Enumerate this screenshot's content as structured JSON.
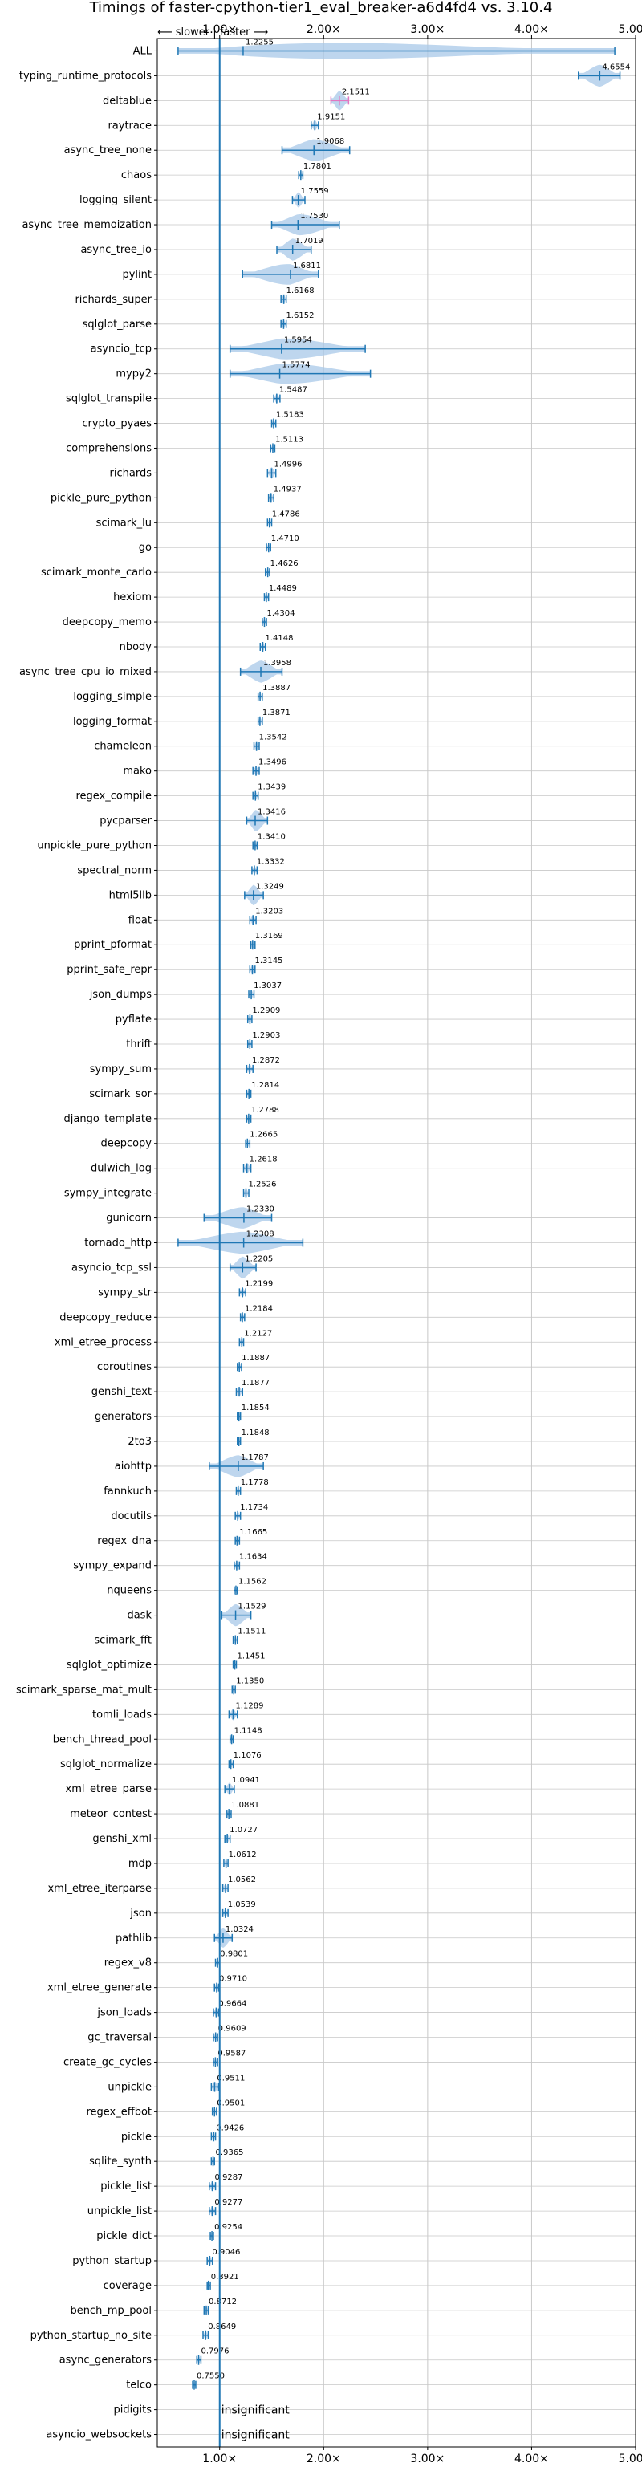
{
  "chart_data": {
    "type": "violin",
    "title": "Timings of faster-cpython-tier1_eval_breaker-a6d4fd4 vs. 3.10.4",
    "direction_label": "⟵ slower | faster ⟶",
    "xlim": [
      0.4,
      5.0
    ],
    "xticks": [
      "1.00×",
      "2.00×",
      "3.00×",
      "4.00×",
      "5.00×"
    ],
    "reference_line": 1.0,
    "colors": {
      "violin": "#a8c8e8",
      "line": "#1f77b4",
      "grid": "#c8c8c8",
      "highlight": "#e377c2"
    },
    "rows": [
      {
        "name": "ALL",
        "value": 1.2255,
        "label": "1.2255",
        "min": 0.6,
        "max": 4.8,
        "spread": 0.18
      },
      {
        "name": "typing_runtime_protocols",
        "value": 4.6554,
        "label": "4.6554",
        "min": 4.45,
        "max": 4.85,
        "spread": 0.16
      },
      {
        "name": "deltablue",
        "value": 2.1511,
        "label": "2.1511",
        "min": 2.07,
        "max": 2.24,
        "spread": 0.08,
        "hl": true
      },
      {
        "name": "raytrace",
        "value": 1.9151,
        "label": "1.9151",
        "min": 1.88,
        "max": 1.95,
        "spread": 0.05
      },
      {
        "name": "async_tree_none",
        "value": 1.9068,
        "label": "1.9068",
        "min": 1.6,
        "max": 2.25,
        "spread": 0.2
      },
      {
        "name": "chaos",
        "value": 1.7801,
        "label": "1.7801",
        "min": 1.76,
        "max": 1.8,
        "spread": 0.03
      },
      {
        "name": "logging_silent",
        "value": 1.7559,
        "label": "1.7559",
        "min": 1.7,
        "max": 1.82,
        "spread": 0.05
      },
      {
        "name": "async_tree_memoization",
        "value": 1.753,
        "label": "1.7530",
        "min": 1.5,
        "max": 2.15,
        "spread": 0.22
      },
      {
        "name": "async_tree_io",
        "value": 1.7019,
        "label": "1.7019",
        "min": 1.55,
        "max": 1.88,
        "spread": 0.14
      },
      {
        "name": "pylint",
        "value": 1.6811,
        "label": "1.6811",
        "min": 1.22,
        "max": 1.95,
        "spread": 0.18
      },
      {
        "name": "richards_super",
        "value": 1.6168,
        "label": "1.6168",
        "min": 1.59,
        "max": 1.64,
        "spread": 0.04
      },
      {
        "name": "sqlglot_parse",
        "value": 1.6152,
        "label": "1.6152",
        "min": 1.59,
        "max": 1.64,
        "spread": 0.04
      },
      {
        "name": "asyncio_tcp",
        "value": 1.5954,
        "label": "1.5954",
        "min": 1.1,
        "max": 2.4,
        "spread": 0.2
      },
      {
        "name": "mypy2",
        "value": 1.5774,
        "label": "1.5774",
        "min": 1.1,
        "max": 2.45,
        "spread": 0.22
      },
      {
        "name": "sqlglot_transpile",
        "value": 1.5487,
        "label": "1.5487",
        "min": 1.52,
        "max": 1.58,
        "spread": 0.05
      },
      {
        "name": "crypto_pyaes",
        "value": 1.5183,
        "label": "1.5183",
        "min": 1.5,
        "max": 1.54,
        "spread": 0.03
      },
      {
        "name": "comprehensions",
        "value": 1.5113,
        "label": "1.5113",
        "min": 1.49,
        "max": 1.53,
        "spread": 0.03
      },
      {
        "name": "richards",
        "value": 1.4996,
        "label": "1.4996",
        "min": 1.46,
        "max": 1.54,
        "spread": 0.05
      },
      {
        "name": "pickle_pure_python",
        "value": 1.4937,
        "label": "1.4937",
        "min": 1.47,
        "max": 1.52,
        "spread": 0.04
      },
      {
        "name": "scimark_lu",
        "value": 1.4786,
        "label": "1.4786",
        "min": 1.46,
        "max": 1.5,
        "spread": 0.03
      },
      {
        "name": "go",
        "value": 1.471,
        "label": "1.4710",
        "min": 1.45,
        "max": 1.49,
        "spread": 0.03
      },
      {
        "name": "scimark_monte_carlo",
        "value": 1.4626,
        "label": "1.4626",
        "min": 1.44,
        "max": 1.48,
        "spread": 0.03
      },
      {
        "name": "hexiom",
        "value": 1.4489,
        "label": "1.4489",
        "min": 1.43,
        "max": 1.47,
        "spread": 0.03
      },
      {
        "name": "deepcopy_memo",
        "value": 1.4304,
        "label": "1.4304",
        "min": 1.41,
        "max": 1.45,
        "spread": 0.03
      },
      {
        "name": "nbody",
        "value": 1.4148,
        "label": "1.4148",
        "min": 1.39,
        "max": 1.44,
        "spread": 0.03
      },
      {
        "name": "async_tree_cpu_io_mixed",
        "value": 1.3958,
        "label": "1.3958",
        "min": 1.2,
        "max": 1.6,
        "spread": 0.15
      },
      {
        "name": "logging_simple",
        "value": 1.3887,
        "label": "1.3887",
        "min": 1.37,
        "max": 1.41,
        "spread": 0.03
      },
      {
        "name": "logging_format",
        "value": 1.3871,
        "label": "1.3871",
        "min": 1.37,
        "max": 1.41,
        "spread": 0.03
      },
      {
        "name": "chameleon",
        "value": 1.3542,
        "label": "1.3542",
        "min": 1.33,
        "max": 1.38,
        "spread": 0.03
      },
      {
        "name": "mako",
        "value": 1.3496,
        "label": "1.3496",
        "min": 1.32,
        "max": 1.38,
        "spread": 0.03
      },
      {
        "name": "regex_compile",
        "value": 1.3439,
        "label": "1.3439",
        "min": 1.32,
        "max": 1.37,
        "spread": 0.03
      },
      {
        "name": "pycparser",
        "value": 1.3416,
        "label": "1.3416",
        "min": 1.26,
        "max": 1.46,
        "spread": 0.1
      },
      {
        "name": "unpickle_pure_python",
        "value": 1.341,
        "label": "1.3410",
        "min": 1.32,
        "max": 1.36,
        "spread": 0.03
      },
      {
        "name": "spectral_norm",
        "value": 1.3332,
        "label": "1.3332",
        "min": 1.31,
        "max": 1.36,
        "spread": 0.03
      },
      {
        "name": "html5lib",
        "value": 1.3249,
        "label": "1.3249",
        "min": 1.24,
        "max": 1.42,
        "spread": 0.07
      },
      {
        "name": "float",
        "value": 1.3203,
        "label": "1.3203",
        "min": 1.29,
        "max": 1.35,
        "spread": 0.04
      },
      {
        "name": "pprint_pformat",
        "value": 1.3169,
        "label": "1.3169",
        "min": 1.3,
        "max": 1.34,
        "spread": 0.03
      },
      {
        "name": "pprint_safe_repr",
        "value": 1.3145,
        "label": "1.3145",
        "min": 1.29,
        "max": 1.34,
        "spread": 0.03
      },
      {
        "name": "json_dumps",
        "value": 1.3037,
        "label": "1.3037",
        "min": 1.28,
        "max": 1.33,
        "spread": 0.03
      },
      {
        "name": "pyflate",
        "value": 1.2909,
        "label": "1.2909",
        "min": 1.27,
        "max": 1.31,
        "spread": 0.03
      },
      {
        "name": "thrift",
        "value": 1.2903,
        "label": "1.2903",
        "min": 1.27,
        "max": 1.31,
        "spread": 0.03
      },
      {
        "name": "sympy_sum",
        "value": 1.2872,
        "label": "1.2872",
        "min": 1.26,
        "max": 1.32,
        "spread": 0.04
      },
      {
        "name": "scimark_sor",
        "value": 1.2814,
        "label": "1.2814",
        "min": 1.26,
        "max": 1.3,
        "spread": 0.03
      },
      {
        "name": "django_template",
        "value": 1.2788,
        "label": "1.2788",
        "min": 1.26,
        "max": 1.3,
        "spread": 0.03
      },
      {
        "name": "deepcopy",
        "value": 1.2665,
        "label": "1.2665",
        "min": 1.25,
        "max": 1.29,
        "spread": 0.03
      },
      {
        "name": "dulwich_log",
        "value": 1.2618,
        "label": "1.2618",
        "min": 1.23,
        "max": 1.3,
        "spread": 0.04
      },
      {
        "name": "sympy_integrate",
        "value": 1.2526,
        "label": "1.2526",
        "min": 1.23,
        "max": 1.28,
        "spread": 0.03
      },
      {
        "name": "gunicorn",
        "value": 1.233,
        "label": "1.2330",
        "min": 0.85,
        "max": 1.5,
        "spread": 0.15
      },
      {
        "name": "tornado_http",
        "value": 1.2308,
        "label": "1.2308",
        "min": 0.6,
        "max": 1.8,
        "spread": 0.25
      },
      {
        "name": "asyncio_tcp_ssl",
        "value": 1.2205,
        "label": "1.2205",
        "min": 1.1,
        "max": 1.35,
        "spread": 0.1
      },
      {
        "name": "sympy_str",
        "value": 1.2199,
        "label": "1.2199",
        "min": 1.19,
        "max": 1.25,
        "spread": 0.04
      },
      {
        "name": "deepcopy_reduce",
        "value": 1.2184,
        "label": "1.2184",
        "min": 1.2,
        "max": 1.24,
        "spread": 0.03
      },
      {
        "name": "xml_etree_process",
        "value": 1.2127,
        "label": "1.2127",
        "min": 1.19,
        "max": 1.23,
        "spread": 0.03
      },
      {
        "name": "coroutines",
        "value": 1.1887,
        "label": "1.1887",
        "min": 1.17,
        "max": 1.21,
        "spread": 0.03
      },
      {
        "name": "genshi_text",
        "value": 1.1877,
        "label": "1.1877",
        "min": 1.16,
        "max": 1.22,
        "spread": 0.04
      },
      {
        "name": "generators",
        "value": 1.1854,
        "label": "1.1854",
        "min": 1.17,
        "max": 1.2,
        "spread": 0.03
      },
      {
        "name": "2to3",
        "value": 1.1848,
        "label": "1.1848",
        "min": 1.17,
        "max": 1.2,
        "spread": 0.03
      },
      {
        "name": "aiohttp",
        "value": 1.1787,
        "label": "1.1787",
        "min": 0.9,
        "max": 1.42,
        "spread": 0.15
      },
      {
        "name": "fannkuch",
        "value": 1.1778,
        "label": "1.1778",
        "min": 1.16,
        "max": 1.2,
        "spread": 0.03
      },
      {
        "name": "docutils",
        "value": 1.1734,
        "label": "1.1734",
        "min": 1.15,
        "max": 1.2,
        "spread": 0.03
      },
      {
        "name": "regex_dna",
        "value": 1.1665,
        "label": "1.1665",
        "min": 1.15,
        "max": 1.19,
        "spread": 0.03
      },
      {
        "name": "sympy_expand",
        "value": 1.1634,
        "label": "1.1634",
        "min": 1.14,
        "max": 1.19,
        "spread": 0.03
      },
      {
        "name": "nqueens",
        "value": 1.1562,
        "label": "1.1562",
        "min": 1.14,
        "max": 1.17,
        "spread": 0.03
      },
      {
        "name": "dask",
        "value": 1.1529,
        "label": "1.1529",
        "min": 1.02,
        "max": 1.3,
        "spread": 0.12
      },
      {
        "name": "scimark_fft",
        "value": 1.1511,
        "label": "1.1511",
        "min": 1.13,
        "max": 1.17,
        "spread": 0.03
      },
      {
        "name": "sqlglot_optimize",
        "value": 1.1451,
        "label": "1.1451",
        "min": 1.13,
        "max": 1.16,
        "spread": 0.03
      },
      {
        "name": "scimark_sparse_mat_mult",
        "value": 1.135,
        "label": "1.1350",
        "min": 1.12,
        "max": 1.15,
        "spread": 0.03
      },
      {
        "name": "tomli_loads",
        "value": 1.1289,
        "label": "1.1289",
        "min": 1.09,
        "max": 1.17,
        "spread": 0.05
      },
      {
        "name": "bench_thread_pool",
        "value": 1.1148,
        "label": "1.1148",
        "min": 1.1,
        "max": 1.13,
        "spread": 0.03
      },
      {
        "name": "sqlglot_normalize",
        "value": 1.1076,
        "label": "1.1076",
        "min": 1.09,
        "max": 1.13,
        "spread": 0.03
      },
      {
        "name": "xml_etree_parse",
        "value": 1.0941,
        "label": "1.0941",
        "min": 1.05,
        "max": 1.14,
        "spread": 0.05
      },
      {
        "name": "meteor_contest",
        "value": 1.0881,
        "label": "1.0881",
        "min": 1.07,
        "max": 1.11,
        "spread": 0.03
      },
      {
        "name": "genshi_xml",
        "value": 1.0727,
        "label": "1.0727",
        "min": 1.05,
        "max": 1.1,
        "spread": 0.03
      },
      {
        "name": "mdp",
        "value": 1.0612,
        "label": "1.0612",
        "min": 1.04,
        "max": 1.08,
        "spread": 0.03
      },
      {
        "name": "xml_etree_iterparse",
        "value": 1.0562,
        "label": "1.0562",
        "min": 1.03,
        "max": 1.08,
        "spread": 0.03
      },
      {
        "name": "json",
        "value": 1.0539,
        "label": "1.0539",
        "min": 1.03,
        "max": 1.08,
        "spread": 0.03
      },
      {
        "name": "pathlib",
        "value": 1.0324,
        "label": "1.0324",
        "min": 0.95,
        "max": 1.12,
        "spread": 0.06
      },
      {
        "name": "regex_v8",
        "value": 0.9801,
        "label": "0.9801",
        "min": 0.96,
        "max": 1.0,
        "spread": 0.03
      },
      {
        "name": "xml_etree_generate",
        "value": 0.971,
        "label": "0.9710",
        "min": 0.95,
        "max": 0.99,
        "spread": 0.03
      },
      {
        "name": "json_loads",
        "value": 0.9664,
        "label": "0.9664",
        "min": 0.94,
        "max": 0.99,
        "spread": 0.03
      },
      {
        "name": "gc_traversal",
        "value": 0.9609,
        "label": "0.9609",
        "min": 0.94,
        "max": 0.98,
        "spread": 0.03
      },
      {
        "name": "create_gc_cycles",
        "value": 0.9587,
        "label": "0.9587",
        "min": 0.94,
        "max": 0.98,
        "spread": 0.03
      },
      {
        "name": "unpickle",
        "value": 0.9511,
        "label": "0.9511",
        "min": 0.92,
        "max": 0.99,
        "spread": 0.04
      },
      {
        "name": "regex_effbot",
        "value": 0.9501,
        "label": "0.9501",
        "min": 0.93,
        "max": 0.97,
        "spread": 0.02
      },
      {
        "name": "pickle",
        "value": 0.9426,
        "label": "0.9426",
        "min": 0.92,
        "max": 0.96,
        "spread": 0.03
      },
      {
        "name": "sqlite_synth",
        "value": 0.9365,
        "label": "0.9365",
        "min": 0.92,
        "max": 0.95,
        "spread": 0.02
      },
      {
        "name": "pickle_list",
        "value": 0.9287,
        "label": "0.9287",
        "min": 0.9,
        "max": 0.96,
        "spread": 0.04
      },
      {
        "name": "unpickle_list",
        "value": 0.9277,
        "label": "0.9277",
        "min": 0.9,
        "max": 0.96,
        "spread": 0.04
      },
      {
        "name": "pickle_dict",
        "value": 0.9254,
        "label": "0.9254",
        "min": 0.91,
        "max": 0.94,
        "spread": 0.03
      },
      {
        "name": "python_startup",
        "value": 0.9046,
        "label": "0.9046",
        "min": 0.88,
        "max": 0.93,
        "spread": 0.04
      },
      {
        "name": "coverage",
        "value": 0.8921,
        "label": "0.8921",
        "min": 0.88,
        "max": 0.91,
        "spread": 0.02
      },
      {
        "name": "bench_mp_pool",
        "value": 0.8712,
        "label": "0.8712",
        "min": 0.85,
        "max": 0.89,
        "spread": 0.03
      },
      {
        "name": "python_startup_no_site",
        "value": 0.8649,
        "label": "0.8649",
        "min": 0.84,
        "max": 0.89,
        "spread": 0.04
      },
      {
        "name": "async_generators",
        "value": 0.7976,
        "label": "0.7976",
        "min": 0.78,
        "max": 0.82,
        "spread": 0.03
      },
      {
        "name": "telco",
        "value": 0.755,
        "label": "0.7550",
        "min": 0.74,
        "max": 0.77,
        "spread": 0.02
      },
      {
        "name": "pidigits",
        "insignificant": true,
        "label": "insignificant"
      },
      {
        "name": "asyncio_websockets",
        "insignificant": true,
        "label": "insignificant"
      }
    ]
  }
}
